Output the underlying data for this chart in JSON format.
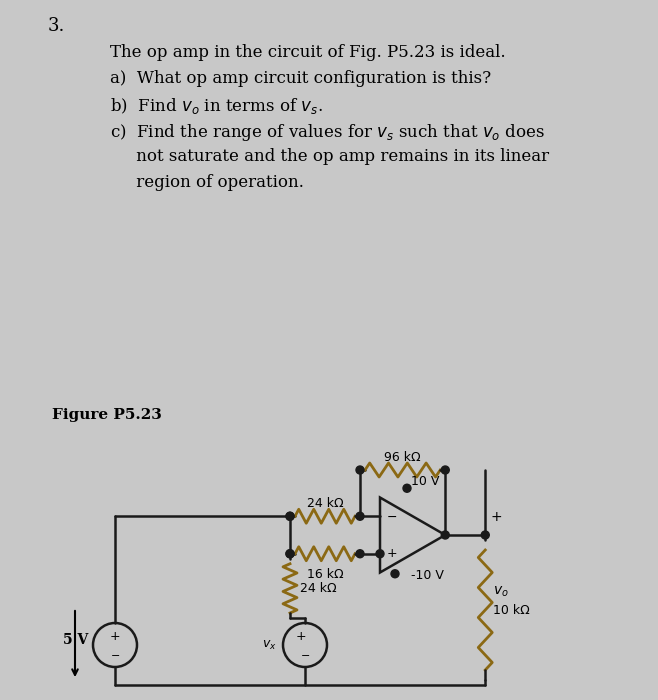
{
  "bg_top": "#d8d8d8",
  "bg_bottom": "#c8c8c8",
  "number": "3.",
  "line1": "The op amp in the circuit of Fig. P5.23 is ideal.",
  "line2_a": "a)  What op amp circuit configuration is this?",
  "line3_b": "b)  Find $v_o$ in terms of $v_s$.",
  "line4_c1": "c)  Find the range of values for $v_s$ such that $v_o$ does",
  "line4_c2": "     not saturate and the op amp remains in its linear",
  "line4_c3": "     region of operation.",
  "fig_label": "Figure P5.23",
  "r1_label": "24 kΩ",
  "r2_label": "16 kΩ",
  "r3_label": "24 kΩ",
  "r4_label": "96 kΩ",
  "r5_label": "10 kΩ",
  "v1_label": "5 V",
  "vx_label": "$v_x$",
  "vp_label": "10 V",
  "vm_label": "-10 V",
  "vo_label": "$v_o$",
  "text_color": "#000000",
  "resistor_color": "#8B6914",
  "wire_color": "#1a1a1a",
  "bg_color": "#c8c8c8"
}
